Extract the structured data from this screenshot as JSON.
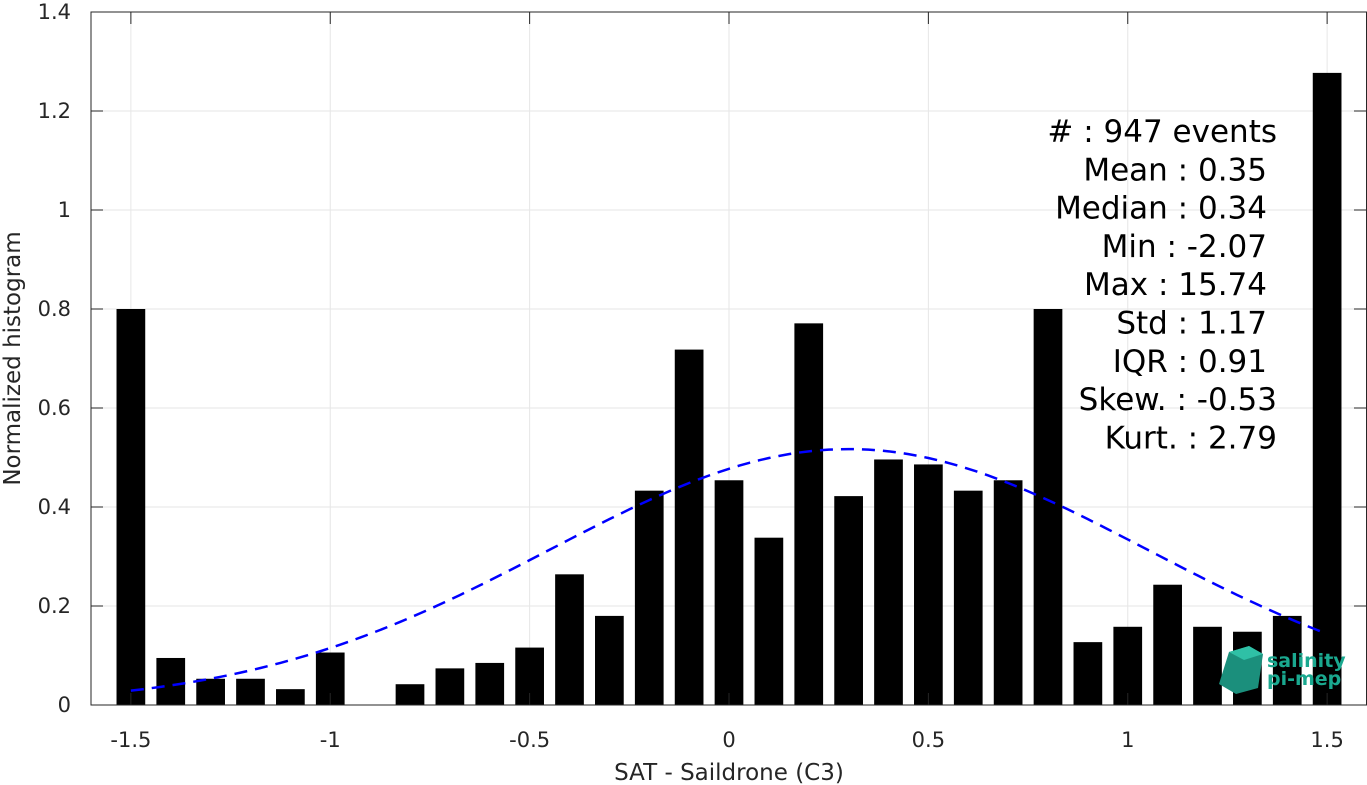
{
  "chart_data": {
    "type": "bar",
    "xlabel": "SAT - Saildrone (C3)",
    "ylabel": "Normalized histogram",
    "xlim": [
      -1.6,
      1.6
    ],
    "ylim": [
      0,
      1.4
    ],
    "xticks": [
      -1.5,
      -1,
      -0.5,
      0,
      0.5,
      1,
      1.5
    ],
    "xtick_labels": [
      "-1.5",
      "-1",
      "-0.5",
      "0",
      "0.5",
      "1",
      "1.5"
    ],
    "yticks": [
      0,
      0.2,
      0.4,
      0.6,
      0.8,
      1,
      1.2,
      1.4
    ],
    "ytick_labels": [
      "0",
      "0.2",
      "0.4",
      "0.6",
      "0.8",
      "1",
      "1.2",
      "1.4"
    ],
    "grid": true,
    "bin_width": 0.1,
    "bar_color": "#000000",
    "bins": [
      {
        "x": -1.5,
        "value": 0.8
      },
      {
        "x": -1.4,
        "value": 0.095
      },
      {
        "x": -1.3,
        "value": 0.053
      },
      {
        "x": -1.2,
        "value": 0.053
      },
      {
        "x": -1.1,
        "value": 0.032
      },
      {
        "x": -1.0,
        "value": 0.106
      },
      {
        "x": -0.9,
        "value": 0.0
      },
      {
        "x": -0.8,
        "value": 0.042
      },
      {
        "x": -0.7,
        "value": 0.074
      },
      {
        "x": -0.6,
        "value": 0.085
      },
      {
        "x": -0.5,
        "value": 0.116
      },
      {
        "x": -0.4,
        "value": 0.264
      },
      {
        "x": -0.3,
        "value": 0.18
      },
      {
        "x": -0.2,
        "value": 0.433
      },
      {
        "x": -0.1,
        "value": 0.718
      },
      {
        "x": 0.0,
        "value": 0.454
      },
      {
        "x": 0.1,
        "value": 0.338
      },
      {
        "x": 0.2,
        "value": 0.771
      },
      {
        "x": 0.3,
        "value": 0.422
      },
      {
        "x": 0.4,
        "value": 0.496
      },
      {
        "x": 0.5,
        "value": 0.486
      },
      {
        "x": 0.6,
        "value": 0.433
      },
      {
        "x": 0.7,
        "value": 0.454
      },
      {
        "x": 0.8,
        "value": 0.8
      },
      {
        "x": 0.9,
        "value": 0.127
      },
      {
        "x": 1.0,
        "value": 0.158
      },
      {
        "x": 1.1,
        "value": 0.243
      },
      {
        "x": 1.2,
        "value": 0.158
      },
      {
        "x": 1.3,
        "value": 0.148
      },
      {
        "x": 1.4,
        "value": 0.18
      },
      {
        "x": 1.5,
        "value": 1.277
      }
    ],
    "fit_curve": {
      "style": "dashed",
      "color": "#0000ff",
      "x_range": [
        -1.5,
        1.5
      ],
      "peak_x": 0.3,
      "peak_value": 0.517,
      "sigma": 0.75
    },
    "stats": [
      "#  : 947 events",
      "Mean : 0.35",
      "Median : 0.34",
      "Min : -2.07",
      "Max : 15.74",
      "Std : 1.17",
      "IQR : 0.91",
      "Skew. : -0.53",
      "Kurt. : 2.79"
    ],
    "logo": [
      "salinity",
      "pi-mep"
    ],
    "logo_color": "#1aa88f"
  }
}
